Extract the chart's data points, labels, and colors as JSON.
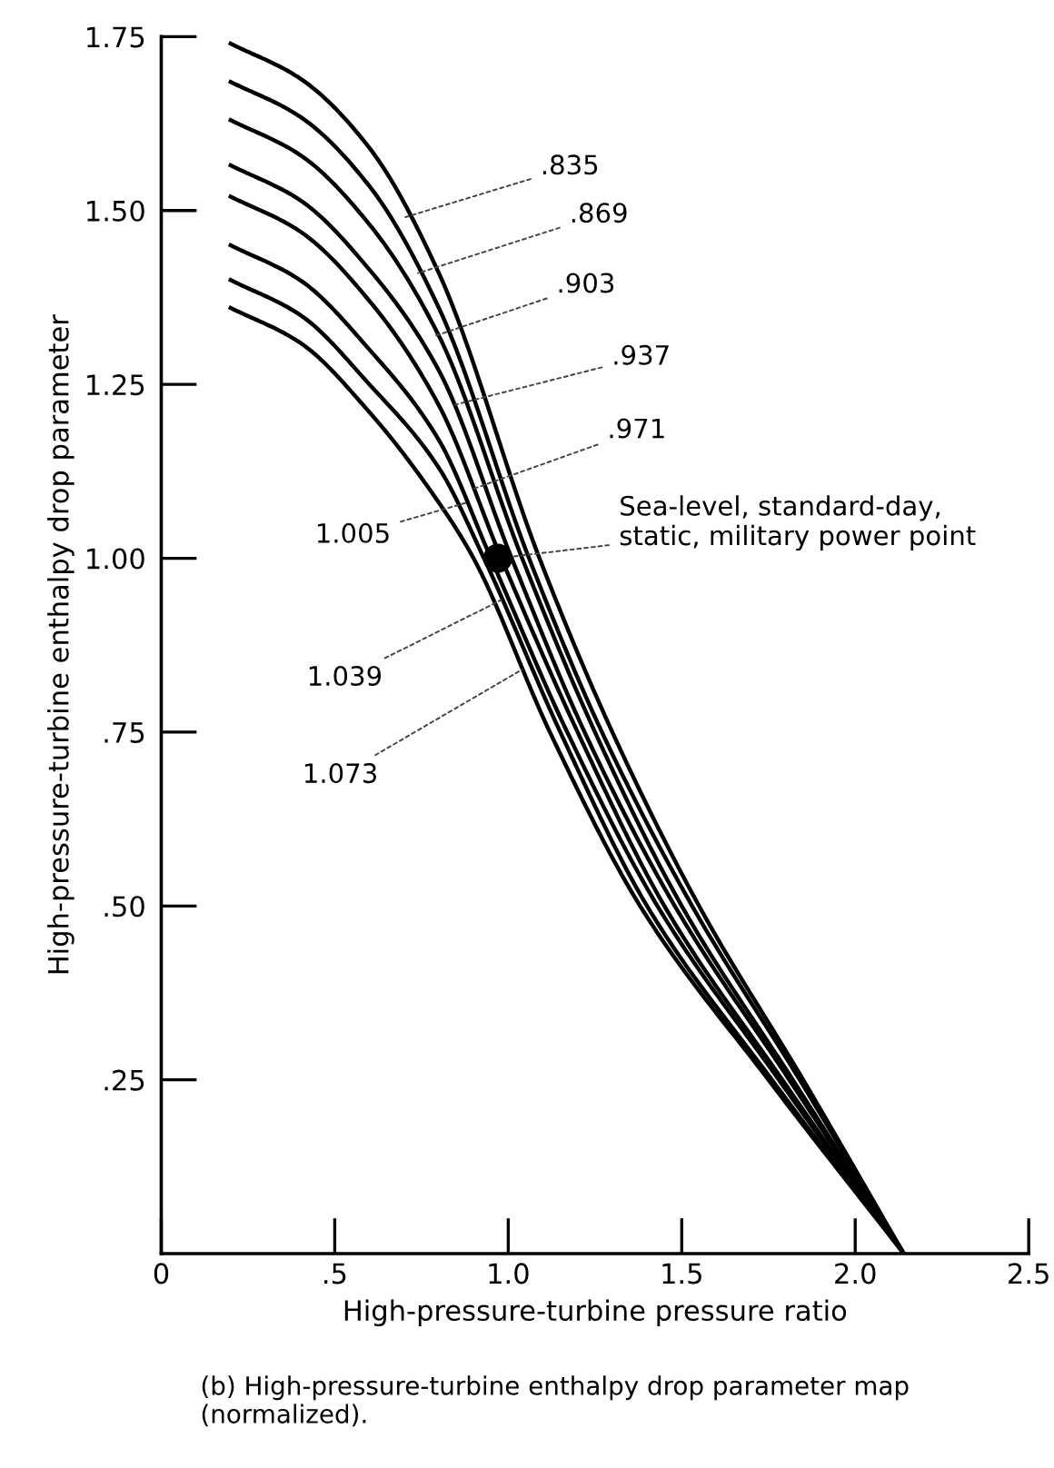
{
  "chart_data": {
    "type": "line",
    "xlabel": "High-pressure-turbine pressure ratio",
    "ylabel": "High-pressure-turbine enthalpy drop parameter",
    "xlim": [
      0,
      2.5
    ],
    "ylim": [
      0,
      1.75
    ],
    "xticks": [
      0,
      {
        "value": 0.5,
        "label": ".5"
      },
      {
        "value": 1,
        "label": "1.0"
      },
      1.5,
      {
        "value": 2,
        "label": "2.0"
      },
      2.5
    ],
    "yticks": [
      {
        "value": 0.25,
        "label": ".25"
      },
      {
        "value": 0.5,
        "label": ".50"
      },
      {
        "value": 0.75,
        "label": ".75"
      },
      {
        "value": 1,
        "label": "1.00"
      },
      1.25,
      {
        "value": 1.5,
        "label": "1.50"
      },
      1.75
    ],
    "grid": false,
    "legend": false,
    "line_style": "solid",
    "series": [
      {
        "color": "#000000",
        "x": [
          0.2,
          0.4,
          0.6,
          0.8,
          1.09,
          1.3,
          1.55,
          1.85,
          2.14
        ],
        "values": [
          1.74,
          1.69,
          1.59,
          1.41,
          1.0,
          0.75,
          0.5,
          0.25,
          0
        ]
      },
      {
        "color": "#000000",
        "x": [
          0.2,
          0.4,
          0.6,
          0.8,
          1.06,
          1.27,
          1.53,
          1.84,
          2.14
        ],
        "values": [
          1.685,
          1.635,
          1.535,
          1.36,
          1.0,
          0.75,
          0.5,
          0.25,
          0
        ]
      },
      {
        "color": "#000000",
        "x": [
          0.2,
          0.4,
          0.6,
          0.8,
          1.04,
          1.25,
          1.5,
          1.82,
          2.14
        ],
        "values": [
          1.63,
          1.58,
          1.48,
          1.32,
          1.0,
          0.75,
          0.5,
          0.25,
          0
        ]
      },
      {
        "color": "#000000",
        "x": [
          0.2,
          0.4,
          0.6,
          0.8,
          1.01,
          1.22,
          1.48,
          1.81,
          2.14
        ],
        "values": [
          1.565,
          1.515,
          1.415,
          1.27,
          1.0,
          0.75,
          0.5,
          0.25,
          0
        ]
      },
      {
        "color": "#000000",
        "x": [
          0.2,
          0.4,
          0.6,
          0.8,
          0.98,
          1.2,
          1.45,
          1.79,
          2.14
        ],
        "values": [
          1.52,
          1.47,
          1.37,
          1.22,
          1.0,
          0.75,
          0.5,
          0.25,
          0
        ]
      },
      {
        "color": "#000000",
        "x": [
          0.2,
          0.4,
          0.6,
          0.8,
          0.95,
          1.17,
          1.43,
          1.78,
          2.14
        ],
        "values": [
          1.45,
          1.4,
          1.3,
          1.17,
          1.0,
          0.75,
          0.5,
          0.25,
          0
        ]
      },
      {
        "color": "#000000",
        "x": [
          0.2,
          0.4,
          0.6,
          0.8,
          0.93,
          1.15,
          1.4,
          1.76,
          2.14
        ],
        "values": [
          1.4,
          1.35,
          1.25,
          1.13,
          1.0,
          0.75,
          0.5,
          0.25,
          0
        ]
      },
      {
        "color": "#000000",
        "x": [
          0.2,
          0.4,
          0.6,
          0.8,
          0.9,
          1.12,
          1.38,
          1.75,
          2.14
        ],
        "values": [
          1.36,
          1.31,
          1.21,
          1.08,
          1.0,
          0.75,
          0.5,
          0.25,
          0
        ]
      },
      {
        "type": "scatter",
        "marker": "circle",
        "color": "#000000",
        "x": [
          0.97
        ],
        "values": [
          1.0
        ]
      }
    ],
    "annotations": [
      {
        "text": ".835",
        "x": 0.7,
        "y": 1.49
      },
      {
        "text": ".869",
        "x": 0.74,
        "y": 1.41
      },
      {
        "text": ".903",
        "x": 0.79,
        "y": 1.32
      },
      {
        "text": ".937",
        "x": 0.84,
        "y": 1.22
      },
      {
        "text": ".971",
        "x": 0.9,
        "y": 1.1
      },
      {
        "text": "1.005",
        "x": 0.88,
        "y": 1.08
      },
      {
        "text": "1.039",
        "x": 0.98,
        "y": 0.94
      },
      {
        "text": "1.073",
        "x": 1.04,
        "y": 0.84
      },
      {
        "text": "Sea-level, standard-day,\nstatic, military power point",
        "x": 0.97,
        "y": 1.0
      },
      "(b) High-pressure-turbine enthalpy drop parameter map\n(normalized)."
    ]
  }
}
